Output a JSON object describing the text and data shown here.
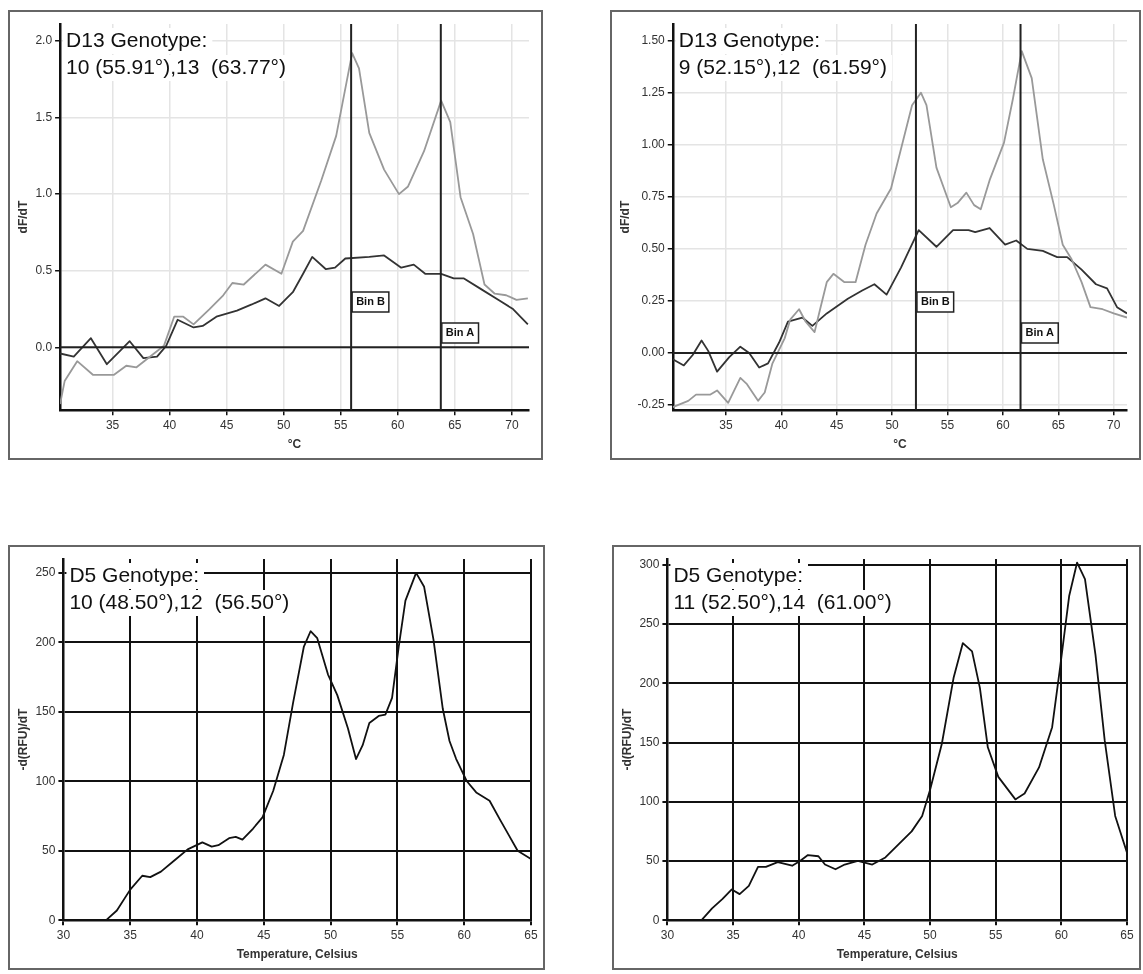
{
  "chart_data": [
    {
      "type": "line",
      "xlabel": "°C",
      "ylabel": "dF/dT",
      "annotations": [
        "D13 Genotype:",
        "10 (55.91°),13  (63.77°)"
      ],
      "xlim": [
        30.4,
        71.5
      ],
      "xticks": [
        35,
        40,
        45,
        50,
        55,
        60,
        65,
        70
      ],
      "ylim": [
        -0.41,
        2.11
      ],
      "yticks": [
        {
          "value": 0,
          "label": "0.0"
        },
        {
          "value": 0.5,
          "label": "0.5"
        },
        {
          "value": 1,
          "label": "1.0"
        },
        {
          "value": 1.5,
          "label": "1.5"
        },
        {
          "value": 2,
          "label": "2.0"
        }
      ],
      "grid": true,
      "legend": false,
      "marker": "none",
      "ref_lines": [
        {
          "axis": "x",
          "value": 55.91,
          "label": "Bin B"
        },
        {
          "axis": "x",
          "value": 63.77,
          "label": "Bin A"
        },
        {
          "axis": "y",
          "value": 0,
          "label": null
        }
      ],
      "series": [
        {
          "color": "#999999",
          "x": [
            30.4,
            30.8,
            31.9,
            33.3,
            35.1,
            36.2,
            37.1,
            38.3,
            39.5,
            40.4,
            41.2,
            42.1,
            43.5,
            44.7,
            45.5,
            46.5,
            48.4,
            49.8,
            50.8,
            51.7,
            53.3,
            54.6,
            56.0,
            56.6,
            57.5,
            58.8,
            60.1,
            60.9,
            62.3,
            63.8,
            64.6,
            65.5,
            66.6,
            67.6,
            68.5,
            69.5,
            70.4,
            71.4
          ],
          "values": [
            -0.37,
            -0.22,
            -0.09,
            -0.18,
            -0.18,
            -0.12,
            -0.13,
            -0.06,
            0.01,
            0.2,
            0.2,
            0.15,
            0.25,
            0.34,
            0.42,
            0.41,
            0.54,
            0.48,
            0.69,
            0.76,
            1.09,
            1.38,
            1.92,
            1.82,
            1.4,
            1.16,
            1.0,
            1.05,
            1.28,
            1.61,
            1.47,
            0.98,
            0.74,
            0.41,
            0.35,
            0.34,
            0.31,
            0.32
          ]
        },
        {
          "color": "#333333",
          "x": [
            30.4,
            31.6,
            33.1,
            34.5,
            35.7,
            36.5,
            37.7,
            38.9,
            39.7,
            40.7,
            42.1,
            42.9,
            44.1,
            45.9,
            47.2,
            48.4,
            49.6,
            50.8,
            51.7,
            52.5,
            53.7,
            54.5,
            55.4,
            57.5,
            58.8,
            60.3,
            61.4,
            62.4,
            63.8,
            64.9,
            65.8,
            67.3,
            68.8,
            70.1,
            71.4
          ],
          "values": [
            -0.04,
            -0.06,
            0.06,
            -0.11,
            -0.02,
            0.04,
            -0.07,
            -0.06,
            0.01,
            0.18,
            0.13,
            0.14,
            0.2,
            0.24,
            0.28,
            0.32,
            0.27,
            0.36,
            0.48,
            0.59,
            0.51,
            0.52,
            0.58,
            0.59,
            0.6,
            0.52,
            0.54,
            0.48,
            0.48,
            0.45,
            0.45,
            0.38,
            0.31,
            0.25,
            0.15
          ]
        }
      ]
    },
    {
      "type": "line",
      "xlabel": "°C",
      "ylabel": "dF/dT",
      "annotations": [
        "D13 Genotype:",
        "9 (52.15°),12  (61.59°)"
      ],
      "xlim": [
        30.2,
        71.2
      ],
      "xticks": [
        35,
        40,
        45,
        50,
        55,
        60,
        65,
        70
      ],
      "ylim": [
        -0.275,
        1.58
      ],
      "yticks": [
        {
          "value": -0.25,
          "label": "-0.25"
        },
        {
          "value": 0,
          "label": "0.00"
        },
        {
          "value": 0.25,
          "label": "0.25"
        },
        {
          "value": 0.5,
          "label": "0.50"
        },
        {
          "value": 0.75,
          "label": "0.75"
        },
        {
          "value": 1,
          "label": "1.00"
        },
        {
          "value": 1.25,
          "label": "1.25"
        },
        {
          "value": 1.5,
          "label": "1.50"
        }
      ],
      "grid": true,
      "legend": false,
      "marker": "none",
      "ref_lines": [
        {
          "axis": "x",
          "value": 52.15,
          "label": "Bin B"
        },
        {
          "axis": "x",
          "value": 61.59,
          "label": "Bin A"
        },
        {
          "axis": "y",
          "value": 0,
          "label": null
        }
      ],
      "series": [
        {
          "color": "#999999",
          "x": [
            30.2,
            31.6,
            32.3,
            33.6,
            34.2,
            35.2,
            36.3,
            36.9,
            37.9,
            38.5,
            39.2,
            40.3,
            40.8,
            41.6,
            42.2,
            43.0,
            43.5,
            44.1,
            44.7,
            45.7,
            46.7,
            47.6,
            48.6,
            49.9,
            50.8,
            51.8,
            52.6,
            53.1,
            54.0,
            55.3,
            55.9,
            56.7,
            57.4,
            58.0,
            58.8,
            60.1,
            60.9,
            61.7,
            62.6,
            63.6,
            64.6,
            65.4,
            66.2,
            67.1,
            67.9,
            69.0,
            70.0,
            71.2
          ],
          "values": [
            -0.26,
            -0.23,
            -0.2,
            -0.2,
            -0.18,
            -0.24,
            -0.12,
            -0.15,
            -0.23,
            -0.19,
            -0.05,
            0.07,
            0.16,
            0.21,
            0.15,
            0.1,
            0.21,
            0.34,
            0.38,
            0.34,
            0.34,
            0.52,
            0.67,
            0.79,
            0.98,
            1.19,
            1.25,
            1.19,
            0.89,
            0.7,
            0.72,
            0.77,
            0.71,
            0.69,
            0.83,
            1.01,
            1.22,
            1.45,
            1.32,
            0.93,
            0.71,
            0.52,
            0.45,
            0.34,
            0.22,
            0.21,
            0.19,
            0.17
          ]
        },
        {
          "color": "#333333",
          "x": [
            30.2,
            31.2,
            32.0,
            32.8,
            33.4,
            34.2,
            35.3,
            36.3,
            37.1,
            38.0,
            38.8,
            39.8,
            40.6,
            41.9,
            42.8,
            44.1,
            46.0,
            47.3,
            48.4,
            49.5,
            50.8,
            52.4,
            54.0,
            55.5,
            56.9,
            57.5,
            58.8,
            60.2,
            61.2,
            62.2,
            63.6,
            64.9,
            65.8,
            67.1,
            68.4,
            69.4,
            70.3,
            71.2
          ],
          "values": [
            -0.03,
            -0.06,
            -0.01,
            0.06,
            0.01,
            -0.09,
            -0.02,
            0.03,
            0.0,
            -0.07,
            -0.05,
            0.05,
            0.15,
            0.17,
            0.13,
            0.19,
            0.26,
            0.3,
            0.33,
            0.28,
            0.41,
            0.59,
            0.51,
            0.59,
            0.59,
            0.58,
            0.6,
            0.52,
            0.54,
            0.5,
            0.49,
            0.46,
            0.46,
            0.4,
            0.33,
            0.31,
            0.22,
            0.19
          ]
        }
      ]
    },
    {
      "type": "line",
      "xlabel": "Temperature, Celsius",
      "ylabel": "-d(RFU)/dT",
      "annotations": [
        "D5 Genotype:",
        "10 (48.50°),12  (56.50°)"
      ],
      "xlim": [
        30,
        65
      ],
      "xticks": [
        30,
        35,
        40,
        45,
        50,
        55,
        60,
        65
      ],
      "ylim": [
        0,
        260
      ],
      "yticks": [
        0,
        50,
        100,
        150,
        200,
        250
      ],
      "grid": true,
      "legend": false,
      "marker": "none",
      "series": [
        {
          "color": "#111111",
          "x": [
            30,
            33.2,
            34.0,
            35.0,
            35.9,
            36.5,
            37.3,
            38.3,
            39.3,
            40.4,
            41.1,
            41.6,
            42.4,
            42.9,
            43.4,
            44.2,
            44.9,
            45.7,
            46.5,
            47.2,
            48.0,
            48.5,
            49.0,
            49.8,
            50.5,
            51.3,
            51.9,
            52.4,
            52.9,
            53.6,
            54.1,
            54.6,
            55.1,
            55.6,
            56.4,
            57.0,
            57.7,
            58.4,
            58.9,
            59.4,
            60.2,
            60.9,
            61.9,
            62.7,
            64.0,
            65.0
          ],
          "values": [
            0,
            0,
            7,
            22,
            32,
            31,
            35,
            43,
            51,
            56,
            53,
            54,
            59,
            60,
            58,
            66,
            74,
            93,
            119,
            157,
            197,
            208,
            203,
            177,
            162,
            138,
            116,
            126,
            142,
            147,
            148,
            160,
            197,
            230,
            250,
            240,
            202,
            152,
            129,
            116,
            100,
            92,
            86,
            72,
            50,
            44
          ]
        }
      ]
    },
    {
      "type": "line",
      "xlabel": "Temperature, Celsius",
      "ylabel": "-d(RFU)/dT",
      "annotations": [
        "D5 Genotype:",
        "11 (52.50°),14  (61.00°)"
      ],
      "xlim": [
        30,
        65
      ],
      "xticks": [
        30,
        35,
        40,
        45,
        50,
        55,
        60,
        65
      ],
      "ylim": [
        0,
        305
      ],
      "yticks": [
        0,
        50,
        100,
        150,
        200,
        250,
        300
      ],
      "grid": true,
      "legend": false,
      "marker": "none",
      "series": [
        {
          "color": "#111111",
          "x": [
            30,
            32.6,
            33.4,
            34.2,
            34.9,
            35.5,
            36.2,
            36.9,
            37.5,
            38.4,
            39.5,
            40.1,
            40.7,
            41.5,
            42.0,
            42.8,
            43.5,
            44.5,
            45.6,
            46.6,
            47.6,
            48.6,
            49.4,
            50.0,
            50.9,
            51.8,
            52.5,
            53.2,
            53.8,
            54.4,
            55.2,
            56.5,
            57.2,
            58.3,
            59.3,
            59.9,
            60.6,
            61.2,
            61.8,
            62.6,
            63.3,
            64.1,
            65.0
          ],
          "values": [
            0,
            0,
            10,
            18,
            26,
            22,
            29,
            45,
            45,
            49,
            46,
            50,
            55,
            54,
            47,
            43,
            47,
            50,
            47,
            53,
            64,
            75,
            88,
            110,
            149,
            205,
            234,
            227,
            196,
            146,
            121,
            102,
            107,
            129,
            163,
            213,
            274,
            302,
            288,
            224,
            152,
            88,
            57
          ]
        }
      ]
    }
  ]
}
